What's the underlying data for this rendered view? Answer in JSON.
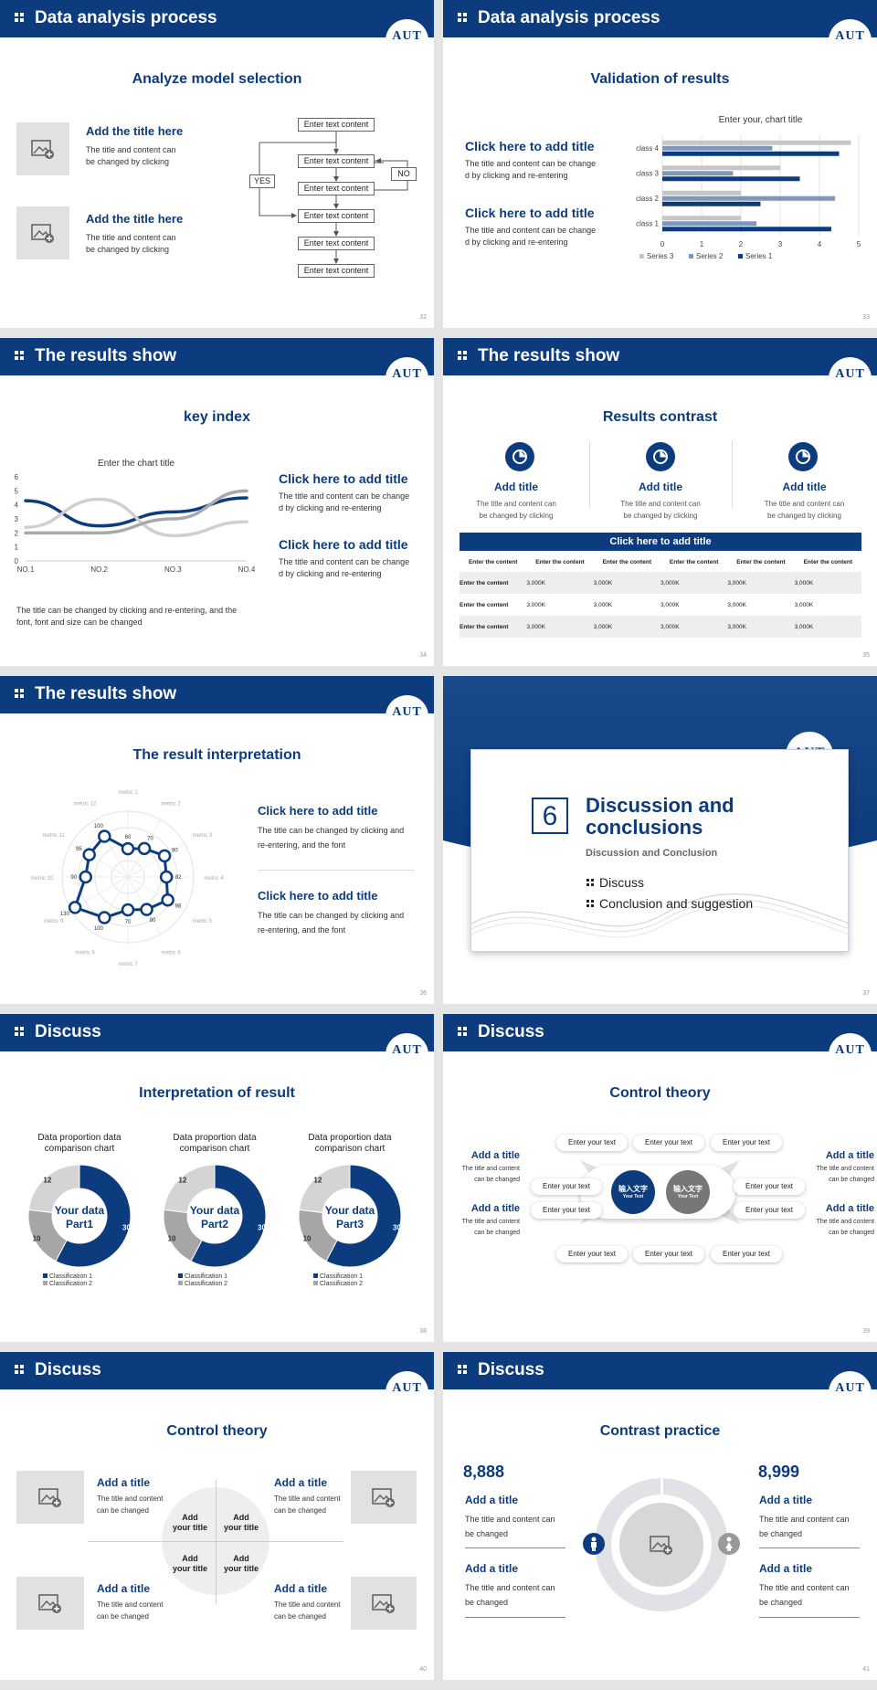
{
  "s32": {
    "header": "Data analysis process",
    "logo": "AUT",
    "title": "Analyze model selection",
    "items": [
      {
        "title": "Add the title here",
        "text1": "The title and content can",
        "text2": "be changed by clicking"
      },
      {
        "title": "Add the title here",
        "text1": "The title and content can",
        "text2": "be changed by clicking"
      }
    ],
    "flow_box": "Enter text content",
    "yes": "YES",
    "no": "NO",
    "page": "32"
  },
  "s33": {
    "header": "Data analysis process",
    "logo": "AUT",
    "title": "Validation of results",
    "items": [
      {
        "title": "Click here to add title",
        "text1": "The title and content can be change",
        "text2": "d by clicking and re-entering"
      },
      {
        "title": "Click here to add title",
        "text1": "The title and content can be change",
        "text2": "d by clicking and re-entering"
      }
    ],
    "page": "33"
  },
  "s34": {
    "header": "The results show",
    "logo": "AUT",
    "title": "key index",
    "items": [
      {
        "title": "Click here to add title",
        "text1": "The title and content can be change",
        "text2": "d by clicking and re-entering"
      },
      {
        "title": "Click here to add title",
        "text1": "The title and content can be change",
        "text2": "d by clicking and re-entering"
      }
    ],
    "note1": "The title can be changed by clicking and re-entering, and the",
    "note2": "font, font and size can be changed",
    "page": "34"
  },
  "s35": {
    "header": "The results show",
    "logo": "AUT",
    "title": "Results contrast",
    "cols": [
      {
        "title": "Add title",
        "text1": "The title and content can",
        "text2": "be changed by clicking"
      },
      {
        "title": "Add title",
        "text1": "The title and content can",
        "text2": "be changed by clicking"
      },
      {
        "title": "Add title",
        "text1": "The title and content can",
        "text2": "be changed by clicking"
      }
    ],
    "table_title": "Click here to add title",
    "table_head": [
      "Enter the content",
      "Enter the content",
      "Enter the content",
      "Enter the content",
      "Enter the content",
      "Enter the content"
    ],
    "table_rows": [
      [
        "Enter the content",
        "3,000K",
        "3,000K",
        "3,000K",
        "3,000K",
        "3,000K"
      ],
      [
        "Enter the content",
        "3,000K",
        "3,000K",
        "3,000K",
        "3,000K",
        "3,000K"
      ],
      [
        "Enter the content",
        "3,000K",
        "3,000K",
        "3,000K",
        "3,000K",
        "3,000K"
      ]
    ],
    "page": "35"
  },
  "s36": {
    "header": "The results show",
    "logo": "AUT",
    "title": "The result interpretation",
    "items": [
      {
        "title": "Click here to add  title",
        "text1": "The title can be changed by clicking and",
        "text2": "re-entering, and the font"
      },
      {
        "title": "Click here to add  title",
        "text1": "The title can be changed by clicking and",
        "text2": "re-entering, and the font"
      }
    ],
    "page": "36"
  },
  "s37": {
    "logo": "AUT",
    "number": "6",
    "title1": "Discussion and",
    "title2": "conclusions",
    "subtitle": "Discussion and Conclusion",
    "bullets": [
      "Discuss",
      "Conclusion and suggestion"
    ],
    "page": "37"
  },
  "s38": {
    "header": "Discuss",
    "logo": "AUT",
    "title": "Interpretation of result",
    "donuts": [
      {
        "cap1": "Data proportion data",
        "cap2": "comparison chart",
        "center1": "Your data",
        "center2": "Part1"
      },
      {
        "cap1": "Data proportion data",
        "cap2": "comparison chart",
        "center1": "Your data",
        "center2": "Part2"
      },
      {
        "cap1": "Data proportion data",
        "cap2": "comparison chart",
        "center1": "Your data",
        "center2": "Part3"
      }
    ],
    "legend1": "Classification 1",
    "legend2": "Classification 2",
    "page": "38"
  },
  "s39": {
    "header": "Discuss",
    "logo": "AUT",
    "title": "Control theory",
    "sides": [
      {
        "title": "Add a title",
        "text1": "The title and content",
        "text2": "can be changed"
      },
      {
        "title": "Add a title",
        "text1": "The title and content",
        "text2": "can be changed"
      },
      {
        "title": "Add a title",
        "text1": "The title and content",
        "text2": "can be changed"
      },
      {
        "title": "Add a title",
        "text1": "The title and content",
        "text2": "can be changed"
      }
    ],
    "pill": "Enter your text",
    "circle_main": "输入文字",
    "circle_sub": "Your Text",
    "page": "39"
  },
  "s40": {
    "header": "Discuss",
    "logo": "AUT",
    "title": "Control theory",
    "items": [
      {
        "title": "Add a title",
        "text1": "The title and content",
        "text2": "can be changed"
      },
      {
        "title": "Add a title",
        "text1": "The title and content",
        "text2": "can be changed"
      },
      {
        "title": "Add a title",
        "text1": "The title and content",
        "text2": "can be changed"
      },
      {
        "title": "Add a title",
        "text1": "The title and content",
        "text2": "can be changed"
      }
    ],
    "quad1": "Add",
    "quad2": "your title",
    "page": "40"
  },
  "s41": {
    "header": "Discuss",
    "logo": "AUT",
    "title": "Contrast practice",
    "left_num": "8,888",
    "right_num": "8,999",
    "items": [
      {
        "title": "Add a title",
        "text1": "The title and content can",
        "text2": "be changed"
      },
      {
        "title": "Add a title",
        "text1": "The title and content can",
        "text2": "be changed"
      },
      {
        "title": "Add a title",
        "text1": "The title and content can",
        "text2": "be changed"
      },
      {
        "title": "Add a title",
        "text1": "The title and content can",
        "text2": "be changed"
      }
    ],
    "page": "41"
  },
  "chart_data": [
    {
      "type": "bar",
      "orientation": "horizontal",
      "title": "Enter your, chart title",
      "categories": [
        "class 1",
        "class 2",
        "class 3",
        "class 4"
      ],
      "series": [
        {
          "name": "Series 3",
          "values": [
            2,
            2,
            3,
            4.8
          ],
          "color": "#c6c6c6"
        },
        {
          "name": "Series 2",
          "values": [
            2.4,
            4.4,
            1.8,
            2.8
          ],
          "color": "#7f97b8"
        },
        {
          "name": "Series 1",
          "values": [
            4.3,
            2.5,
            3.5,
            4.5
          ],
          "color": "#0c3b7e"
        }
      ],
      "xlim": [
        0,
        5
      ],
      "xticks": [
        "0",
        "1",
        "2",
        "3",
        "4",
        "5"
      ],
      "legend": "bottom"
    },
    {
      "type": "line",
      "title": "Enter the chart title",
      "categories": [
        "NO.1",
        "NO.2",
        "NO.3",
        "NO.4"
      ],
      "series": [
        {
          "values": [
            4.3,
            2.5,
            3.5,
            4.5
          ],
          "color": "#0c3b7e"
        },
        {
          "values": [
            2.4,
            4.4,
            1.8,
            2.8
          ],
          "color": "#cfcfcf"
        },
        {
          "values": [
            2,
            2,
            3,
            5
          ],
          "color": "#a9a9a9"
        }
      ],
      "ylim": [
        0,
        6
      ],
      "yticks": [
        "0",
        "1",
        "2",
        "3",
        "4",
        "5",
        "6"
      ]
    },
    {
      "type": "radar",
      "axes": [
        "metric 1",
        "metric 2",
        "metric 3",
        "metric 4",
        "metric 5",
        "metric 6",
        "metric 7",
        "metric 8",
        "metric 9",
        "metric 10",
        "metric 11",
        "metric 12"
      ],
      "values": [
        60,
        70,
        90,
        82,
        98,
        80,
        70,
        100,
        130,
        90,
        95,
        100
      ]
    },
    {
      "type": "pie",
      "name": "Part1",
      "values": [
        30,
        10,
        12
      ],
      "labels": [
        "30",
        "10",
        "12"
      ]
    },
    {
      "type": "pie",
      "name": "Part2",
      "values": [
        30,
        10,
        12
      ],
      "labels": [
        "30",
        "10",
        "12"
      ]
    },
    {
      "type": "pie",
      "name": "Part3",
      "values": [
        30,
        10,
        12
      ],
      "labels": [
        "30",
        "10",
        "12"
      ]
    }
  ]
}
